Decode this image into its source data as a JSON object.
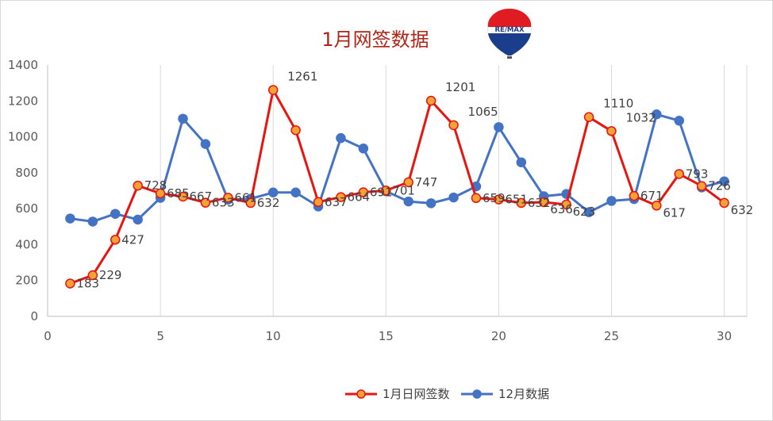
{
  "chart_data": {
    "type": "line",
    "title": "1月网签数据",
    "x": [
      1,
      2,
      3,
      4,
      5,
      6,
      7,
      8,
      9,
      10,
      11,
      12,
      13,
      14,
      15,
      16,
      17,
      18,
      19,
      20,
      21,
      22,
      23,
      24,
      25,
      26,
      27,
      28,
      29,
      30
    ],
    "xticks": [
      0,
      5,
      10,
      15,
      20,
      25,
      30
    ],
    "yticks": [
      0,
      200,
      400,
      600,
      800,
      1000,
      1200,
      1400
    ],
    "xlim": [
      0,
      31
    ],
    "ylim": [
      0,
      1400
    ],
    "grid": "vertical",
    "legend": "bottom",
    "series": [
      {
        "name": "1月日网签数",
        "color": "#e8140f",
        "marker_fill": "#f4a235",
        "marker_edge": "#e8140f",
        "values": [
          183,
          229,
          427,
          728,
          685,
          667,
          633,
          661,
          632,
          1261,
          1037,
          637,
          664,
          691,
          701,
          747,
          1201,
          1065,
          659,
          651,
          632,
          636,
          623,
          1110,
          1032,
          671,
          617,
          793,
          726,
          632
        ],
        "labels": [
          "183",
          "229",
          "427",
          "728",
          "685",
          "667",
          "633",
          "661",
          "632",
          "1261",
          "",
          "637",
          "664",
          "691",
          "701",
          "747",
          "1201",
          "1065",
          "659",
          "651",
          "632",
          "636",
          "623",
          "1110",
          "1032",
          "671",
          "617",
          "793",
          "726",
          "632"
        ]
      },
      {
        "name": "12月数据",
        "color": "#4472c4",
        "marker_fill": "#4472c4",
        "marker_edge": "#4472c4",
        "values": [
          545,
          528,
          571,
          539,
          660,
          1101,
          960,
          650,
          655,
          690,
          690,
          612,
          993,
          935,
          697,
          640,
          630,
          662,
          724,
          1054,
          858,
          669,
          682,
          580,
          643,
          653,
          1125,
          1090,
          718,
          752
        ],
        "labels": []
      }
    ]
  },
  "logo": {
    "text": "RE/MAX",
    "colors": [
      "#e11b22",
      "#ffffff",
      "#1a3e8c"
    ]
  }
}
